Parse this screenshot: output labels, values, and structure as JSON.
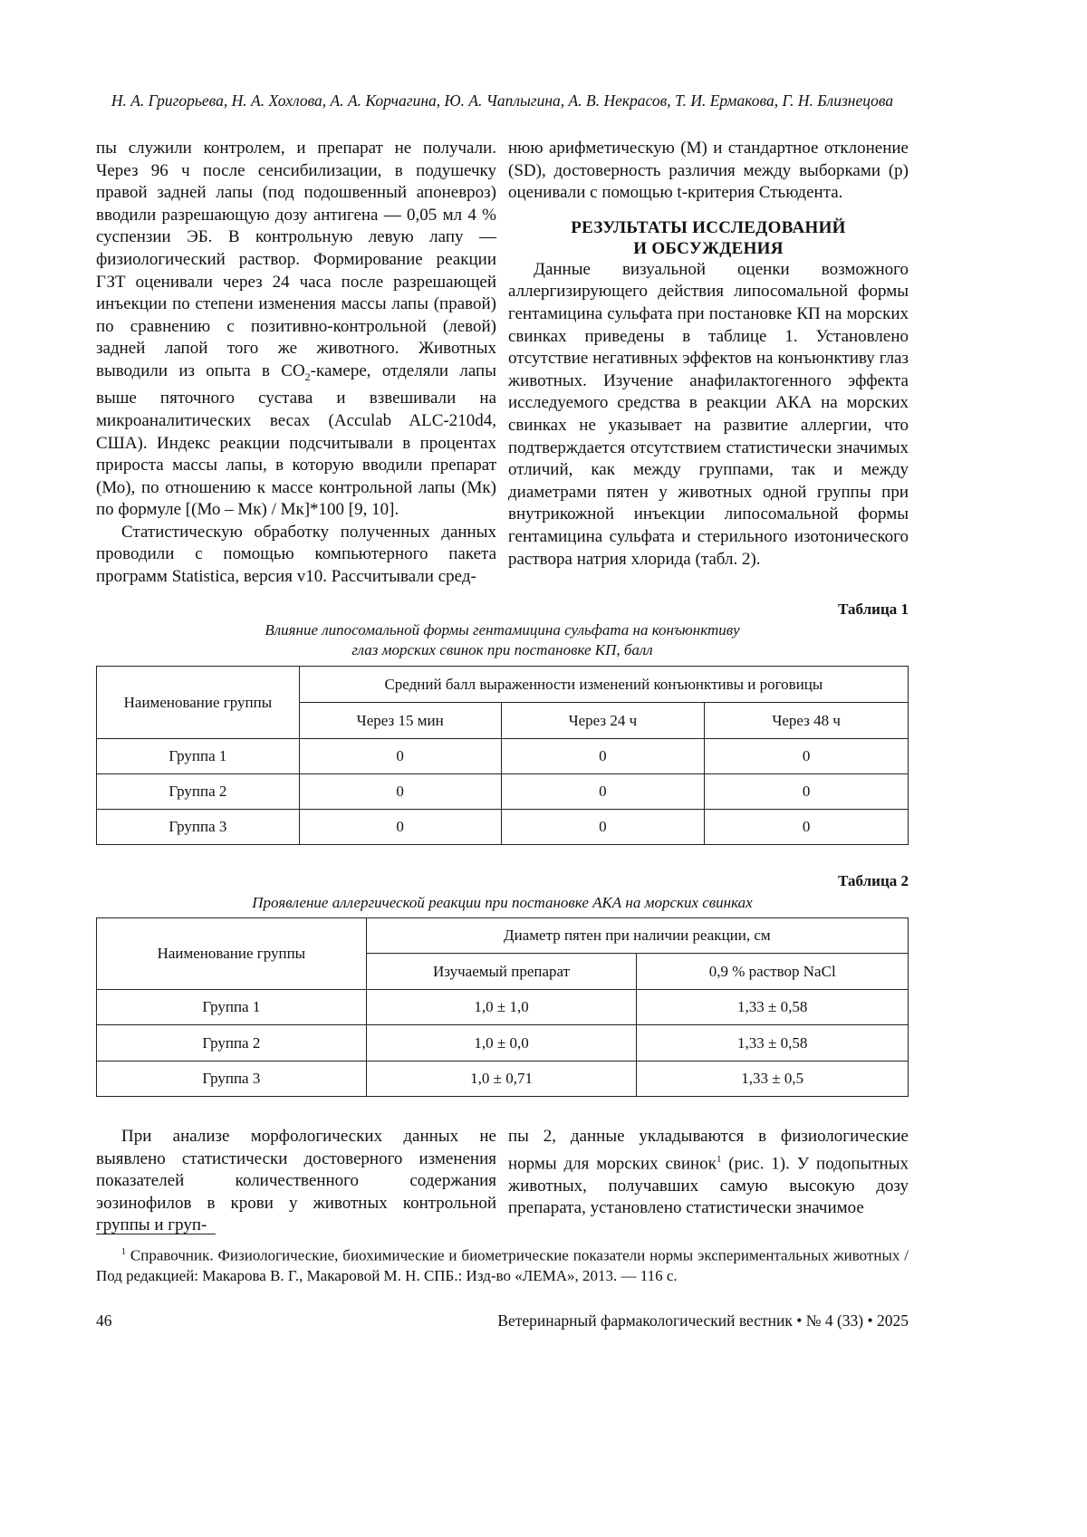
{
  "header": {
    "authors": "Н. А. Григорьева, Н. А. Хохлова, А. А. Корчагина, Ю. А. Чаплыгина, А. В. Некрасов, Т. И. Ермакова, Г. Н. Близнецова"
  },
  "left_column": {
    "p1_a": "пы служили контролем, и препарат не получали. Через 96 ч после сенсибилизации, в подушечку правой задней лапы (под подошвенный апоневроз) вводили разрешающую дозу антигена — 0,05 мл 4 % суспензии ЭБ. В контрольную левую лапу — физиологический раствор. Формирование реакции ГЗТ оценивали через 24 часа после разрешающей инъекции по степени изменения массы лапы (правой) по сравнению с позитивно-контрольной (левой) задней лапой того же животного. Животных выводили из опыта в CO",
    "p1_sub": "2",
    "p1_b": "-камере, отделяли лапы выше пяточного сустава и взвешивали на микроаналитических весах (Acculab ALC-210d4, США). Индекс реакции подсчитывали в процентах прироста массы лапы, в которую вводили препарат (Мо), по отношению к массе контрольной лапы (Мк) по формуле [(Мо – Мк) / Мк]*100 [9, 10].",
    "p2": "Статистическую обработку полученных данных проводили с помощью компьютерного пакета программ Statistica, версия v10. Рассчитывали сред-"
  },
  "right_column": {
    "p1": "нюю арифметическую (M) и стандартное отклонение (SD), достоверность различия между выборками (p) оценивали с помощью t-критерия Стьюдента.",
    "heading_1": "РЕЗУЛЬТАТЫ ИССЛЕДОВАНИЙ",
    "heading_2": "И ОБСУЖДЕНИЯ",
    "p2": "Данные визуальной оценки возможного аллергизирующего действия липосомальной формы гентамицина сульфата при постановке КП на морских свинках приведены в таблице 1. Установлено отсутствие негативных эффектов на конъюнктиву глаз животных. Изучение анафилактогенного эффекта исследуемого средства в реакции АКА на морских свинках не указывает на развитие аллергии, что подтверждается отсутствием статистически значимых отличий, как между группами, так и между диаметрами пятен у животных одной группы при внутрикожной инъекции липосомальной формы гентамицина сульфата и стерильного изотонического раствора натрия хлорида (табл. 2)."
  },
  "table1": {
    "label": "Таблица 1",
    "caption_1": "Влияние липосомальной формы гентамицина сульфата на конъюнктиву",
    "caption_2": "глаз морских свинок при постановке КП, балл",
    "col_group": "Наименование группы",
    "col_span": "Средний балл выраженности изменений конъюнктивы и роговицы",
    "cols": [
      "Через 15 мин",
      "Через 24 ч",
      "Через 48 ч"
    ],
    "rows": [
      [
        "Группа 1",
        "0",
        "0",
        "0"
      ],
      [
        "Группа 2",
        "0",
        "0",
        "0"
      ],
      [
        "Группа 3",
        "0",
        "0",
        "0"
      ]
    ]
  },
  "table2": {
    "label": "Таблица 2",
    "caption": "Проявление аллергической реакции при постановке АКА на морских свинках",
    "col_group": "Наименование группы",
    "col_span": "Диаметр пятен при наличии реакции, см",
    "cols": [
      "Изучаемый препарат",
      "0,9 % раствор NaCl"
    ],
    "rows": [
      [
        "Группа 1",
        "1,0 ± 1,0",
        "1,33 ± 0,58"
      ],
      [
        "Группа 2",
        "1,0 ± 0,0",
        "1,33 ± 0,58"
      ],
      [
        "Группа 3",
        "1,0 ± 0,71",
        "1,33 ± 0,5"
      ]
    ]
  },
  "bottom": {
    "left": "При анализе морфологических данных не выявлено статистически достоверного изменения показателей количественного содержания эозинофилов в крови у животных контрольной группы и груп-",
    "right_a": "пы 2, данные укладываются в физиологические нормы для морских свинок",
    "right_sup": "1",
    "right_b": " (рис. 1). У подопытных животных, получавших самую высокую дозу препарата, установлено статистически значимое"
  },
  "footnote": {
    "mark": "1",
    "text": " Справочник. Физиологические, биохимические и биометрические показатели нормы экспериментальных животных / Под редакцией: Макарова В. Г., Макаровой М. Н. СПБ.: Изд-во «ЛЕМА», 2013. — 116 с."
  },
  "footer": {
    "page_number": "46",
    "journal": "Ветеринарный фармакологический вестник • № 4 (33) • 2025"
  }
}
